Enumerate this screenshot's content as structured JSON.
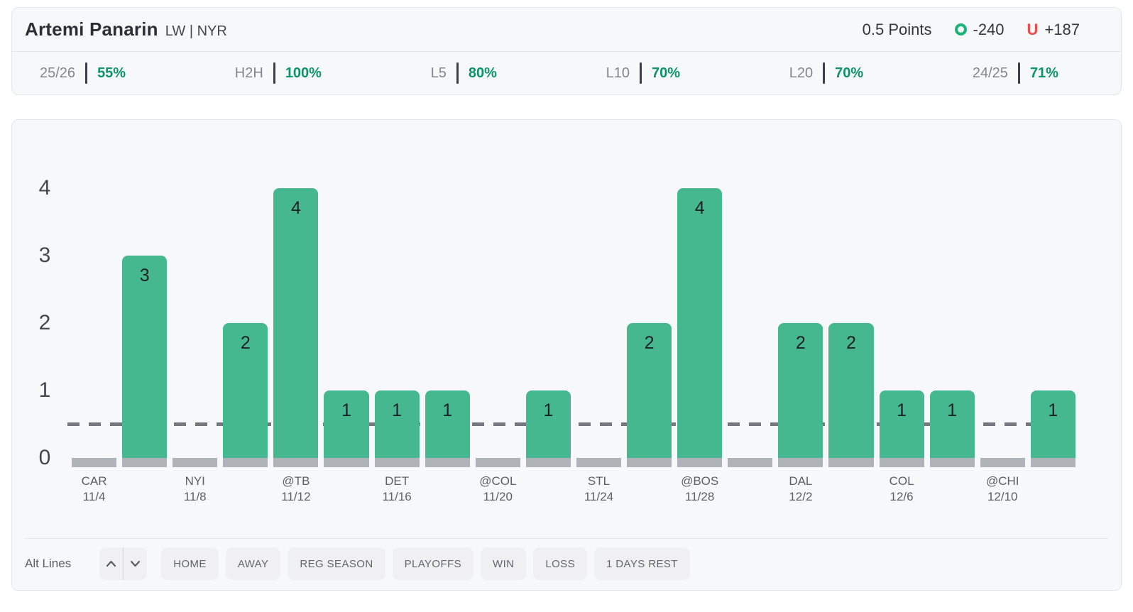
{
  "header": {
    "player_name": "Artemi Panarin",
    "position_team": "LW | NYR",
    "prop": {
      "line_label": "0.5 Points",
      "over_icon": "O",
      "over_odds": "-240",
      "under_icon": "U",
      "under_odds": "+187",
      "over_color": "#1cb377",
      "under_color": "#f04c4c"
    }
  },
  "stats": [
    {
      "label": "25/26",
      "value": "55%"
    },
    {
      "label": "H2H",
      "value": "100%"
    },
    {
      "label": "L5",
      "value": "80%"
    },
    {
      "label": "L10",
      "value": "70%"
    },
    {
      "label": "L20",
      "value": "70%"
    },
    {
      "label": "24/25",
      "value": "71%"
    }
  ],
  "chart_data": {
    "type": "bar",
    "title": "",
    "xlabel": "",
    "ylabel": "",
    "ylim": [
      0,
      4
    ],
    "yticks": [
      4,
      3,
      2,
      1,
      0
    ],
    "prop_line_value": 0.5,
    "bar_color": "#46b890",
    "zero_stub_color": "#b0b3b8",
    "dash_color": "#75797f",
    "grid": false,
    "legend": "none",
    "games": [
      {
        "opponent": "CAR",
        "date": "11/4",
        "value": 0
      },
      {
        "opponent": "",
        "date": "",
        "value": 3
      },
      {
        "opponent": "NYI",
        "date": "11/8",
        "value": 0
      },
      {
        "opponent": "",
        "date": "",
        "value": 2
      },
      {
        "opponent": "@TB",
        "date": "11/12",
        "value": 4
      },
      {
        "opponent": "",
        "date": "",
        "value": 1
      },
      {
        "opponent": "DET",
        "date": "11/16",
        "value": 1
      },
      {
        "opponent": "",
        "date": "",
        "value": 1
      },
      {
        "opponent": "@COL",
        "date": "11/20",
        "value": 0
      },
      {
        "opponent": "",
        "date": "",
        "value": 1
      },
      {
        "opponent": "STL",
        "date": "11/24",
        "value": 0
      },
      {
        "opponent": "",
        "date": "",
        "value": 2
      },
      {
        "opponent": "@BOS",
        "date": "11/28",
        "value": 4
      },
      {
        "opponent": "",
        "date": "",
        "value": 0
      },
      {
        "opponent": "DAL",
        "date": "12/2",
        "value": 2
      },
      {
        "opponent": "",
        "date": "",
        "value": 2
      },
      {
        "opponent": "COL",
        "date": "12/6",
        "value": 1
      },
      {
        "opponent": "",
        "date": "",
        "value": 1
      },
      {
        "opponent": "@CHI",
        "date": "12/10",
        "value": 0
      },
      {
        "opponent": "",
        "date": "",
        "value": 1
      }
    ]
  },
  "controls": {
    "alt_lines_label": "Alt Lines",
    "filters": [
      "HOME",
      "AWAY",
      "REG SEASON",
      "PLAYOFFS",
      "WIN",
      "LOSS",
      "1 DAYS REST"
    ]
  }
}
